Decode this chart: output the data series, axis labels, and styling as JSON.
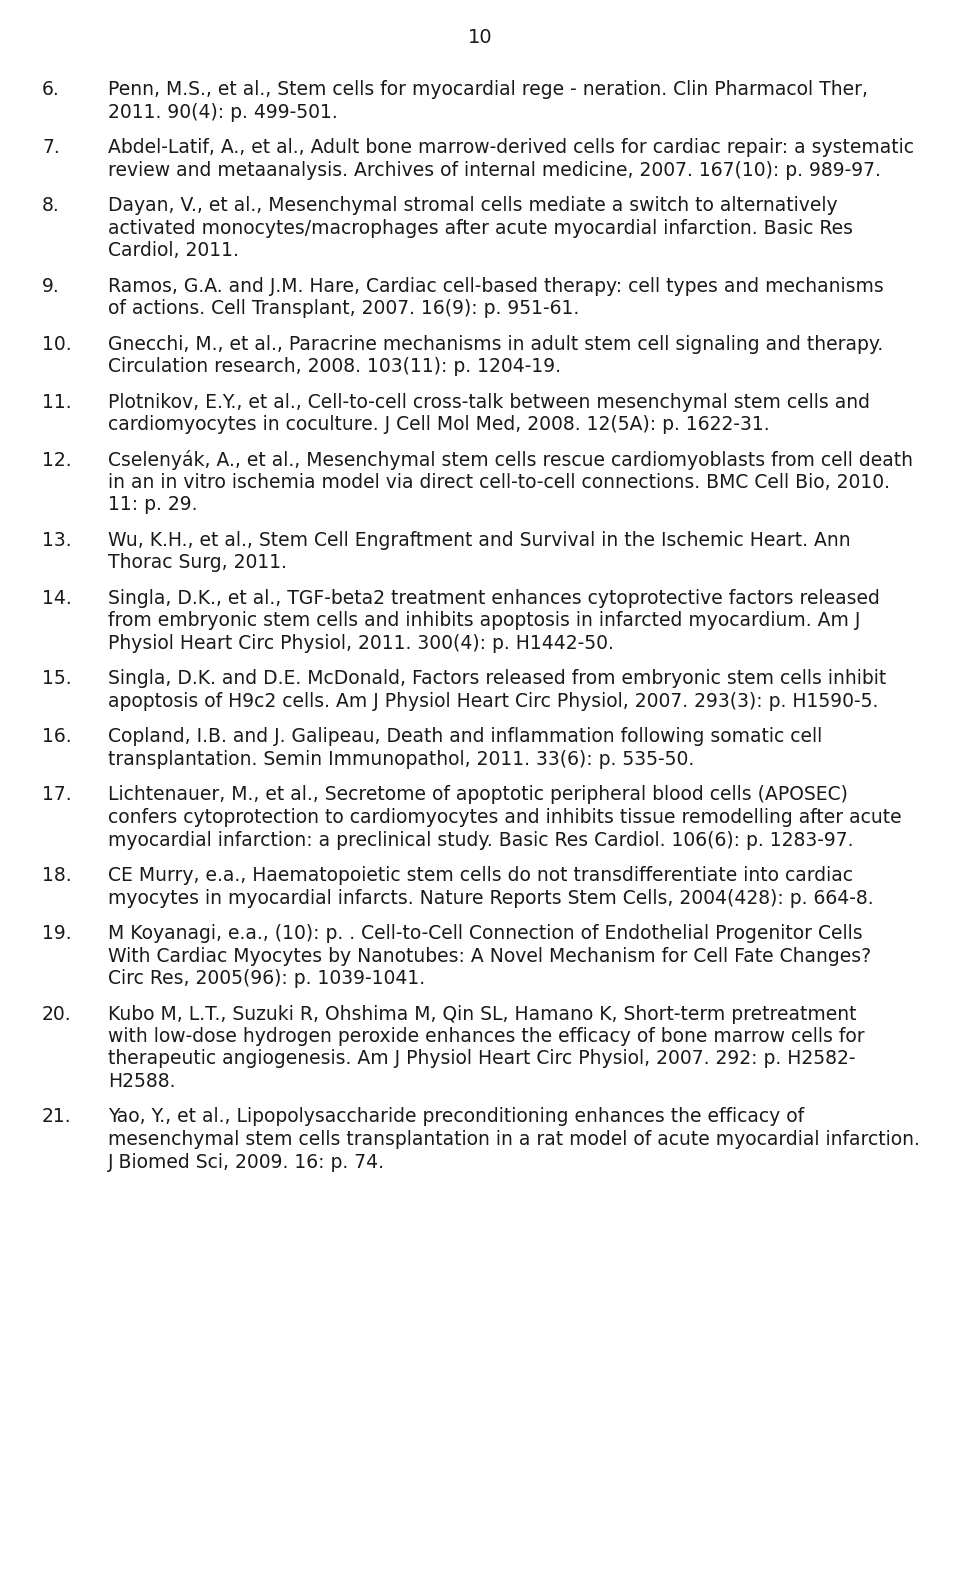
{
  "page_number": "10",
  "bg_color": "#ffffff",
  "text_color": "#1a1a1a",
  "font_size": 13.5,
  "page_num_font_size": 14,
  "references": [
    {
      "number": "6.",
      "lines": [
        "Penn, M.S., et al., Stem cells for myocardial rege - neration. Clin Pharmacol Ther,",
        "2011. 90(4): p. 499-501."
      ]
    },
    {
      "number": "7.",
      "lines": [
        "Abdel-Latif, A., et al., Adult bone marrow-derived cells for cardiac repair: a systematic",
        "review and metaanalysis. Archives of internal medicine, 2007. 167(10): p. 989-97."
      ]
    },
    {
      "number": "8.",
      "lines": [
        "Dayan, V., et al., Mesenchymal stromal cells mediate a switch to alternatively",
        "activated monocytes/macrophages after acute myocardial infarction. Basic Res",
        "Cardiol, 2011."
      ]
    },
    {
      "number": "9.",
      "lines": [
        "Ramos, G.A. and J.M. Hare, Cardiac cell-based therapy: cell types and mechanisms",
        "of actions. Cell Transplant, 2007. 16(9): p. 951-61."
      ]
    },
    {
      "number": "10.",
      "lines": [
        "Gnecchi, M., et al., Paracrine mechanisms in adult stem cell signaling and therapy.",
        "Circulation research, 2008. 103(11): p. 1204-19."
      ]
    },
    {
      "number": "11.",
      "lines": [
        "Plotnikov, E.Y., et al., Cell-to-cell cross-talk between mesenchymal stem cells and",
        "cardiomyocytes in coculture. J Cell Mol Med, 2008. 12(5A): p. 1622-31."
      ]
    },
    {
      "number": "12.",
      "lines": [
        "Cselenyák, A., et al., Mesenchymal stem cells rescue cardiomyoblasts from cell death",
        "in an in vitro ischemia model via direct cell-to-cell connections. BMC Cell Bio, 2010.",
        "11: p. 29."
      ]
    },
    {
      "number": "13.",
      "lines": [
        "Wu, K.H., et al., Stem Cell Engraftment and Survival in the Ischemic Heart. Ann",
        "Thorac Surg, 2011."
      ]
    },
    {
      "number": "14.",
      "lines": [
        "Singla, D.K., et al., TGF-beta2 treatment enhances cytoprotective factors released",
        "from embryonic stem cells and inhibits apoptosis in infarcted myocardium. Am J",
        "Physiol Heart Circ Physiol, 2011. 300(4): p. H1442-50."
      ]
    },
    {
      "number": "15.",
      "lines": [
        "Singla, D.K. and D.E. McDonald, Factors released from embryonic stem cells inhibit",
        "apoptosis of H9c2 cells. Am J Physiol Heart Circ Physiol, 2007. 293(3): p. H1590-5."
      ]
    },
    {
      "number": "16.",
      "lines": [
        "Copland, I.B. and J. Galipeau, Death and inflammation following somatic cell",
        "transplantation. Semin Immunopathol, 2011. 33(6): p. 535-50."
      ]
    },
    {
      "number": "17.",
      "lines": [
        "Lichtenauer, M., et al., Secretome of apoptotic peripheral blood cells (APOSEC)",
        "confers cytoprotection to cardiomyocytes and inhibits tissue remodelling after acute",
        "myocardial infarction: a preclinical study. Basic Res Cardiol. 106(6): p. 1283-97."
      ]
    },
    {
      "number": "18.",
      "lines": [
        "CE Murry, e.a., Haematopoietic stem cells do not transdifferentiate into cardiac",
        "myocytes in myocardial infarcts. Nature Reports Stem Cells, 2004(428): p. 664-8."
      ]
    },
    {
      "number": "19.",
      "lines": [
        "M Koyanagi, e.a., (10): p. . Cell-to-Cell Connection of Endothelial Progenitor Cells",
        "With Cardiac Myocytes by Nanotubes: A Novel Mechanism for Cell Fate Changes?",
        "Circ Res, 2005(96): p. 1039-1041."
      ]
    },
    {
      "number": "20.",
      "lines": [
        "Kubo M, L.T., Suzuki R, Ohshima M, Qin SL, Hamano K, Short-term pretreatment",
        "with low-dose hydrogen peroxide enhances the efficacy of bone marrow cells for",
        "therapeutic angiogenesis. Am J Physiol Heart Circ Physiol, 2007. 292: p. H2582-",
        "H2588."
      ]
    },
    {
      "number": "21.",
      "lines": [
        "Yao, Y., et al., Lipopolysaccharide preconditioning enhances the efficacy of",
        "mesenchymal stem cells transplantation in a rat model of acute myocardial infarction.",
        "J Biomed Sci, 2009. 16: p. 74."
      ]
    }
  ]
}
